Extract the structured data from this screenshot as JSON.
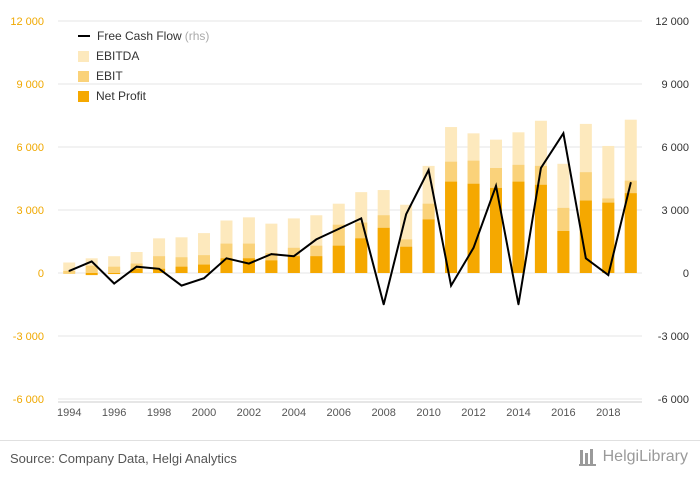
{
  "colors": {
    "net_profit": "#f5a800",
    "ebit": "#fad27a",
    "ebitda": "#fde9bd",
    "fcf": "#000000",
    "left_axis_text": "#f0a800",
    "right_axis_text": "#333333",
    "grid": "#e6e6e6"
  },
  "legend": {
    "fcf_label": "Free Cash Flow",
    "fcf_note": "(rhs)",
    "ebitda_label": "EBITDA",
    "ebit_label": "EBIT",
    "net_profit_label": "Net Profit"
  },
  "footer": {
    "source": "Source: Company Data, Helgi Analytics",
    "brand": "HelgiLibrary"
  },
  "chart_data": {
    "type": "bar",
    "overlay_type": "line",
    "x": [
      1994,
      1995,
      1996,
      1997,
      1998,
      1999,
      2000,
      2001,
      2002,
      2003,
      2004,
      2005,
      2006,
      2007,
      2008,
      2009,
      2010,
      2011,
      2012,
      2013,
      2014,
      2015,
      2016,
      2017,
      2018,
      2019
    ],
    "series": [
      {
        "name": "EBITDA",
        "axis": "left",
        "values": [
          500,
          700,
          800,
          1000,
          1650,
          1700,
          1900,
          2500,
          2650,
          2350,
          2600,
          2750,
          3300,
          3850,
          3950,
          3250,
          5100,
          6950,
          6650,
          6350,
          6700,
          7250,
          5200,
          7100,
          6050,
          7300
        ]
      },
      {
        "name": "EBIT",
        "axis": "left",
        "values": [
          100,
          350,
          300,
          450,
          800,
          750,
          850,
          1400,
          1400,
          950,
          1200,
          1300,
          2300,
          2400,
          2750,
          1600,
          3300,
          5300,
          5350,
          5000,
          5150,
          5100,
          3100,
          4800,
          3550,
          4400
        ]
      },
      {
        "name": "Net Profit",
        "axis": "left",
        "values": [
          0,
          -100,
          -50,
          200,
          200,
          300,
          400,
          700,
          700,
          600,
          800,
          800,
          1300,
          1650,
          2150,
          1250,
          2550,
          4350,
          4250,
          4050,
          4350,
          4200,
          2000,
          3450,
          3350,
          3800
        ]
      },
      {
        "name": "Free Cash Flow",
        "axis": "right",
        "values": [
          100,
          550,
          -500,
          300,
          200,
          -600,
          -250,
          700,
          450,
          900,
          800,
          1600,
          2100,
          2600,
          -1500,
          2800,
          4900,
          -600,
          1200,
          4150,
          -1500,
          5000,
          6650,
          700,
          -100,
          4300
        ]
      }
    ],
    "y_left": {
      "ticks": [
        "-6 000",
        "-3 000",
        "0",
        "3 000",
        "6 000",
        "9 000",
        "12 000"
      ],
      "min": -6000,
      "max": 12000
    },
    "y_right": {
      "ticks": [
        "-6 000",
        "-3 000",
        "0",
        "3 000",
        "6 000",
        "9 000",
        "12 000"
      ],
      "min": -6000,
      "max": 12000
    },
    "x_ticks": [
      "1994",
      "1996",
      "1998",
      "2000",
      "2002",
      "2004",
      "2006",
      "2008",
      "2010",
      "2012",
      "2014",
      "2016",
      "2018"
    ],
    "grid": true,
    "legend_position": "top-left"
  }
}
